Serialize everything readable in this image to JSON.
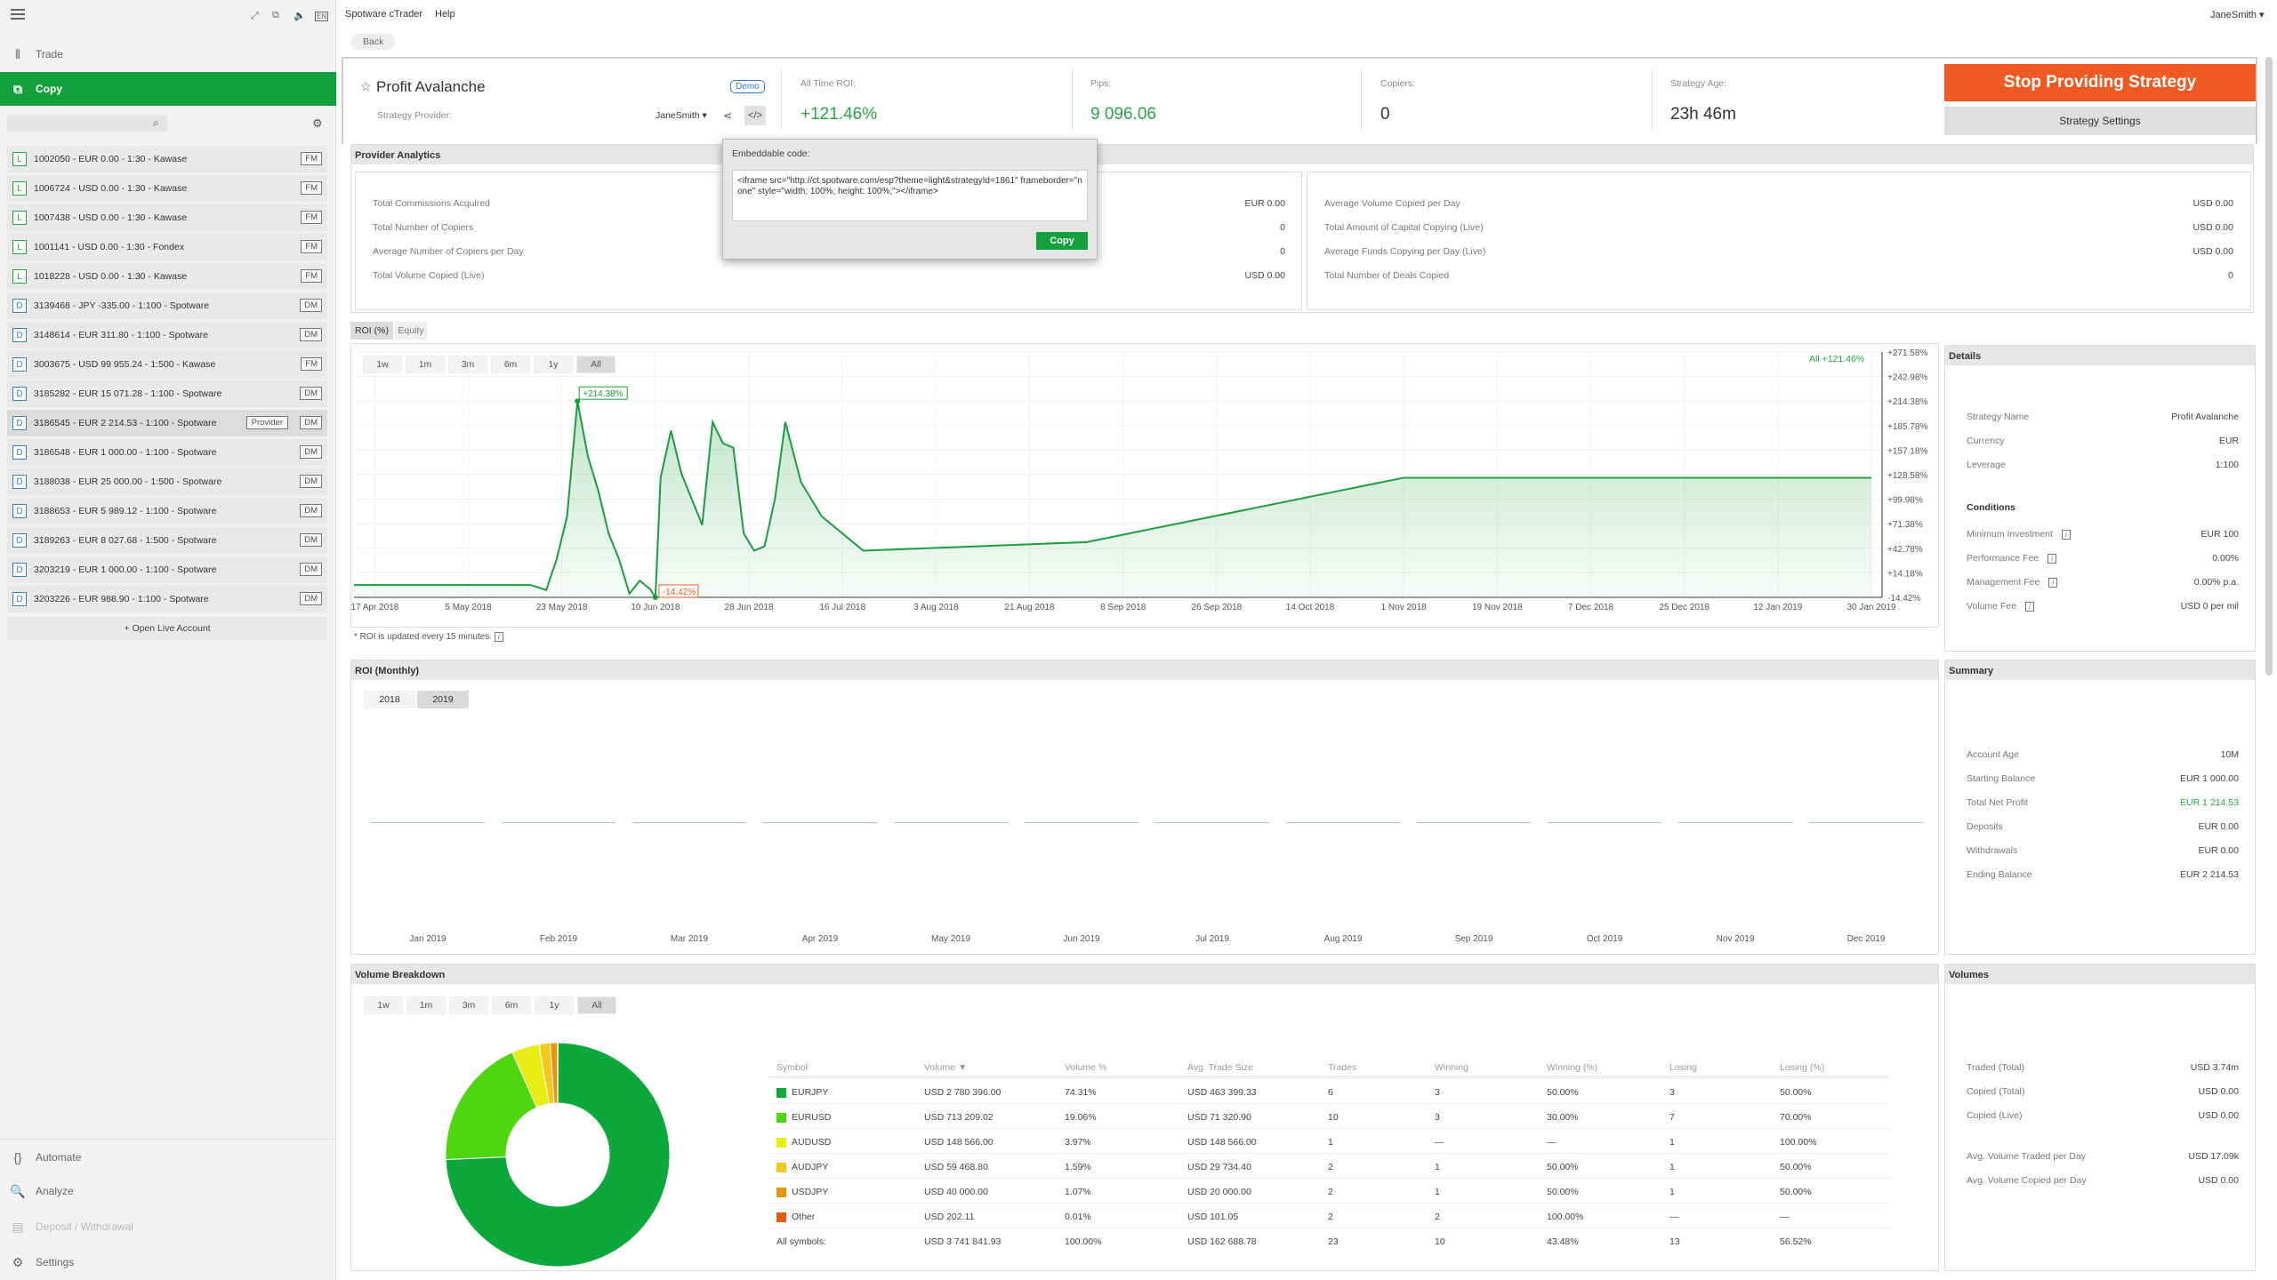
{
  "menubar": {
    "app": "Spotware cTrader",
    "help": "Help",
    "user": "JaneSmith"
  },
  "back": "Back",
  "sidebar": {
    "nav": [
      {
        "label": "Trade"
      },
      {
        "label": "Copy"
      }
    ],
    "bottom": [
      {
        "label": "Automate"
      },
      {
        "label": "Analyze"
      },
      {
        "label": "Deposit / Withdrawal"
      },
      {
        "label": "Settings"
      }
    ],
    "accounts": [
      {
        "type": "L",
        "text": "1002050 - EUR 0.00 - 1:30 - Kawase",
        "badge": "FM"
      },
      {
        "type": "L",
        "text": "1006724 - USD 0.00 - 1:30 - Kawase",
        "badge": "FM"
      },
      {
        "type": "L",
        "text": "1007438 - USD 0.00 - 1:30 - Kawase",
        "badge": "FM"
      },
      {
        "type": "L",
        "text": "1001141 - USD 0.00 - 1:30 - Fondex",
        "badge": "FM"
      },
      {
        "type": "L",
        "text": "1018228 - USD 0.00 - 1:30 - Kawase",
        "badge": "FM"
      },
      {
        "type": "D",
        "text": "3139468 - JPY -335.00 - 1:100 - Spotware",
        "badge": "DM"
      },
      {
        "type": "D",
        "text": "3148614 - EUR 311.80 - 1:100 - Spotware",
        "badge": "DM"
      },
      {
        "type": "D",
        "text": "3003675 - USD 99 955.24 - 1:500 - Kawase",
        "badge": "FM"
      },
      {
        "type": "D",
        "text": "3185282 - EUR 15 071.28 - 1:100 - Spotware",
        "badge": "DM"
      },
      {
        "type": "D",
        "text": "3186545 - EUR 2 214.53 - 1:100 - Spotware",
        "badge": "DM",
        "provider": "Provider"
      },
      {
        "type": "D",
        "text": "3186548 - EUR 1 000.00 - 1:100 - Spotware",
        "badge": "DM"
      },
      {
        "type": "D",
        "text": "3188038 - EUR 25 000.00 - 1:500 - Spotware",
        "badge": "DM"
      },
      {
        "type": "D",
        "text": "3188653 - EUR 5 989.12 - 1:100 - Spotware",
        "badge": "DM"
      },
      {
        "type": "D",
        "text": "3189263 - EUR 8 027.68 - 1:500 - Spotware",
        "badge": "DM"
      },
      {
        "type": "D",
        "text": "3203219 - EUR 1 000.00 - 1:100 - Spotware",
        "badge": "DM"
      },
      {
        "type": "D",
        "text": "3203226 - EUR 988.90 - 1:100 - Spotware",
        "badge": "DM"
      }
    ],
    "open_live": "+ Open Live Account"
  },
  "strategy": {
    "name": "Profit Avalanche",
    "demo": "Demo",
    "provider_label": "Strategy Provider:",
    "provider": "JaneSmith",
    "roi_label": "All Time ROI:",
    "roi": "+121.46%",
    "pips_label": "Pips:",
    "pips": "9 096.06",
    "copiers_label": "Copiers:",
    "copiers": "0",
    "age_label": "Strategy Age:",
    "age": "23h 46m",
    "stop": "Stop Providing Strategy",
    "settings": "Strategy Settings"
  },
  "embed": {
    "title": "Embeddable code:",
    "code": "<iframe src=\"http://ct.spotware.com/esp?theme=light&strategyId=1861\" frameborder=\"none\" style=\"width: 100%; height: 100%;\"></iframe>",
    "copy": "Copy"
  },
  "analytics": {
    "title": "Provider Analytics",
    "left": [
      [
        "Total Commissions Acquired",
        "EUR 0.00"
      ],
      [
        "Total Number of Copiers",
        "0"
      ],
      [
        "Average Number of Copiers per Day",
        "0"
      ],
      [
        "Total Volume Copied (Live)",
        "USD 0.00"
      ]
    ],
    "right": [
      [
        "Average Volume Copied per Day",
        "USD 0.00"
      ],
      [
        "Total Amount of Capital Copying (Live)",
        "USD 0.00"
      ],
      [
        "Average Funds Copying per Day (Live)",
        "USD 0.00"
      ],
      [
        "Total Number of Deals Copied",
        "0"
      ]
    ]
  },
  "tabs": [
    "ROI (%)",
    "Equity"
  ],
  "timeframes": [
    "1w",
    "1m",
    "3m",
    "6m",
    "1y",
    "All"
  ],
  "roi_chart": {
    "legend_all": "All",
    "legend_val": "+121.46%",
    "max_label": "+214.38%",
    "min_label": "-14.42%",
    "yticks": [
      "+271.58%",
      "+242.98%",
      "+214.38%",
      "+185.78%",
      "+157.18%",
      "+128.58%",
      "+99.98%",
      "+71.38%",
      "+42.78%",
      "+14.18%",
      "-14.42%"
    ],
    "xticks": [
      "17 Apr 2018",
      "5 May 2018",
      "23 May 2018",
      "10 Jun 2018",
      "28 Jun 2018",
      "16 Jul 2018",
      "3 Aug 2018",
      "21 Aug 2018",
      "8 Sep 2018",
      "26 Sep 2018",
      "14 Oct 2018",
      "1 Nov 2018",
      "19 Nov 2018",
      "7 Dec 2018",
      "25 Dec 2018",
      "12 Jan 2019",
      "30 Jan 2019"
    ],
    "note": "* ROI is updated every 15 minutes."
  },
  "chart_data": {
    "type": "area",
    "title": "ROI (%)",
    "ylim": [
      -14.42,
      271.58
    ],
    "x": [
      "13 Apr 2018",
      "20 Apr 2018",
      "1 May 2018",
      "10 May 2018",
      "17 May 2018",
      "20 May 2018",
      "22 May 2018",
      "24 May 2018",
      "26 May 2018",
      "28 May 2018",
      "30 May 2018",
      "1 Jun 2018",
      "3 Jun 2018",
      "5 Jun 2018",
      "7 Jun 2018",
      "9 Jun 2018",
      "10 Jun 2018",
      "11 Jun 2018",
      "13 Jun 2018",
      "15 Jun 2018",
      "17 Jun 2018",
      "19 Jun 2018",
      "21 Jun 2018",
      "23 Jun 2018",
      "25 Jun 2018",
      "27 Jun 2018",
      "29 Jun 2018",
      "1 Jul 2018",
      "3 Jul 2018",
      "5 Jul 2018",
      "8 Jul 2018",
      "12 Jul 2018",
      "16 Jul 2018",
      "20 Jul 2018",
      "1 Sep 2018",
      "1 Nov 2018",
      "1 Jan 2019",
      "30 Jan 2019"
    ],
    "series": [
      {
        "values": [
          0,
          0,
          0,
          0,
          0,
          -6,
          30,
          80,
          214.38,
          150,
          110,
          60,
          30,
          -10,
          5,
          -5,
          -14.42,
          125,
          180,
          130,
          100,
          70,
          190,
          165,
          160,
          60,
          40,
          45,
          100,
          190,
          120,
          80,
          60,
          40,
          50,
          125,
          125,
          125
        ]
      }
    ]
  },
  "details": {
    "title": "Details",
    "rows": [
      [
        "Strategy Name",
        "Profit Avalanche"
      ],
      [
        "Currency",
        "EUR"
      ],
      [
        "Leverage",
        "1:100"
      ]
    ],
    "cond_title": "Conditions",
    "cond": [
      [
        "Minimum Investment",
        "EUR 100"
      ],
      [
        "Performance Fee",
        "0.00%"
      ],
      [
        "Management Fee",
        "0.00% p.a."
      ],
      [
        "Volume Fee",
        "USD 0 per mil"
      ]
    ]
  },
  "monthly": {
    "title": "ROI (Monthly)",
    "years": [
      "2018",
      "2019"
    ],
    "months": [
      "Jan 2019",
      "Feb 2019",
      "Mar 2019",
      "Apr 2019",
      "May 2019",
      "Jun 2019",
      "Jul 2019",
      "Aug 2019",
      "Sep 2019",
      "Oct 2019",
      "Nov 2019",
      "Dec 2019"
    ]
  },
  "summary": {
    "title": "Summary",
    "rows": [
      [
        "Account Age",
        "10M"
      ],
      [
        "Starting Balance",
        "EUR 1 000.00"
      ],
      [
        "Total Net Profit",
        "EUR 1 214.53"
      ],
      [
        "Deposits",
        "EUR 0.00"
      ],
      [
        "Withdrawals",
        "EUR 0.00"
      ],
      [
        "Ending Balance",
        "EUR 2 214.53"
      ]
    ]
  },
  "volume": {
    "title": "Volume Breakdown",
    "headers": [
      "Symbol",
      "Volume ▼",
      "Volume %",
      "Avg. Trade Size",
      "Trades",
      "Winning",
      "Winning (%)",
      "Losing",
      "Losing (%)"
    ],
    "rows": [
      {
        "color": "#0da83c",
        "c": [
          "EURJPY",
          "USD 2 780 396.00",
          "74.31%",
          "USD 463 399.33",
          "6",
          "3",
          "50.00%",
          "3",
          "50.00%"
        ]
      },
      {
        "color": "#4ed611",
        "c": [
          "EURUSD",
          "USD 713 209.02",
          "19.06%",
          "USD 71 320.90",
          "10",
          "3",
          "30.00%",
          "7",
          "70.00%"
        ]
      },
      {
        "color": "#e8ee15",
        "c": [
          "AUDUSD",
          "USD 148 566.00",
          "3.97%",
          "USD 148 566.00",
          "1",
          "—",
          "—",
          "1",
          "100.00%"
        ]
      },
      {
        "color": "#f2c81a",
        "c": [
          "AUDJPY",
          "USD 59 468.80",
          "1.59%",
          "USD 29 734.40",
          "2",
          "1",
          "50.00%",
          "1",
          "50.00%"
        ]
      },
      {
        "color": "#e8950d",
        "c": [
          "USDJPY",
          "USD 40 000.00",
          "1.07%",
          "USD 20 000.00",
          "2",
          "1",
          "50.00%",
          "1",
          "50.00%"
        ]
      },
      {
        "color": "#e45a0c",
        "c": [
          "Other",
          "USD 202.11",
          "0.01%",
          "USD 101.05",
          "2",
          "2",
          "100.00%",
          "—",
          "—"
        ]
      }
    ],
    "total": [
      "All symbols:",
      "USD 3 741 841.93",
      "100.00%",
      "USD 162 688.78",
      "23",
      "10",
      "43.48%",
      "13",
      "56.52%"
    ]
  },
  "volumes": {
    "title": "Volumes",
    "rows": [
      [
        "Traded (Total)",
        "USD 3.74m"
      ],
      [
        "Copied (Total)",
        "USD 0.00"
      ],
      [
        "Copied (Live)",
        "USD 0.00"
      ]
    ],
    "rows2": [
      [
        "Avg. Volume Traded per Day",
        "USD 17.09k"
      ],
      [
        "Avg. Volume Copied per Day",
        "USD 0.00"
      ]
    ]
  }
}
